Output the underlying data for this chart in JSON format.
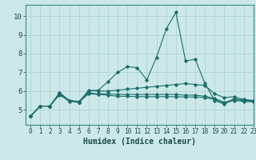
{
  "title": "",
  "xlabel": "Humidex (Indice chaleur)",
  "xlim": [
    -0.5,
    23
  ],
  "ylim": [
    4.2,
    10.6
  ],
  "yticks": [
    5,
    6,
    7,
    8,
    9,
    10
  ],
  "xticks": [
    0,
    1,
    2,
    3,
    4,
    5,
    6,
    7,
    8,
    9,
    10,
    11,
    12,
    13,
    14,
    15,
    16,
    17,
    18,
    19,
    20,
    21,
    22,
    23
  ],
  "bg_color": "#cce8e8",
  "line_color": "#1a6e6a",
  "grid_color": "#aad0d0",
  "series": [
    [
      4.65,
      5.2,
      5.2,
      5.9,
      5.5,
      5.4,
      6.0,
      6.05,
      6.5,
      7.0,
      7.3,
      7.25,
      6.6,
      7.8,
      9.3,
      10.2,
      7.6,
      7.7,
      6.4,
      5.5,
      5.3,
      5.6,
      5.5,
      5.5
    ],
    [
      4.65,
      5.2,
      5.2,
      5.9,
      5.5,
      5.4,
      6.05,
      6.0,
      6.0,
      6.05,
      6.1,
      6.15,
      6.2,
      6.25,
      6.3,
      6.35,
      6.4,
      6.35,
      6.3,
      5.85,
      5.65,
      5.7,
      5.55,
      5.5
    ],
    [
      4.65,
      5.2,
      5.2,
      5.85,
      5.5,
      5.45,
      5.9,
      5.85,
      5.85,
      5.82,
      5.82,
      5.82,
      5.82,
      5.82,
      5.82,
      5.82,
      5.78,
      5.78,
      5.72,
      5.6,
      5.4,
      5.55,
      5.5,
      5.45
    ],
    [
      4.65,
      5.2,
      5.2,
      5.8,
      5.45,
      5.4,
      5.85,
      5.82,
      5.78,
      5.72,
      5.72,
      5.7,
      5.7,
      5.7,
      5.7,
      5.7,
      5.68,
      5.68,
      5.65,
      5.55,
      5.35,
      5.5,
      5.45,
      5.42
    ]
  ],
  "x_values": [
    0,
    1,
    2,
    3,
    4,
    5,
    6,
    7,
    8,
    9,
    10,
    11,
    12,
    13,
    14,
    15,
    16,
    17,
    18,
    19,
    20,
    21,
    22,
    23
  ]
}
